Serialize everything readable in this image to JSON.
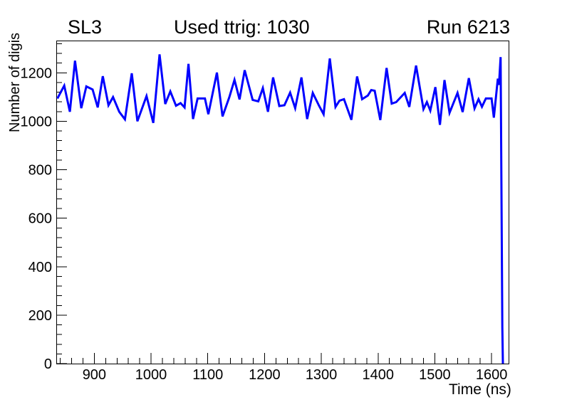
{
  "header": {
    "left_label": "SL3",
    "center_title": "Used ttrig: 1030",
    "right_label": "Run 6213"
  },
  "chart_data": {
    "type": "line",
    "title": "Used ttrig: 1030",
    "subtitle_left": "SL3",
    "subtitle_right": "Run 6213",
    "xlabel": "Time (ns)",
    "ylabel": "Number of digis",
    "xlim": [
      833,
      1630
    ],
    "ylim": [
      0,
      1333
    ],
    "x_major_ticks": [
      900,
      1000,
      1100,
      1200,
      1300,
      1400,
      1500,
      1600
    ],
    "x_minor_step": 20,
    "y_major_ticks": [
      0,
      200,
      400,
      600,
      800,
      1000,
      1200
    ],
    "y_minor_step": 40,
    "grid": false,
    "legend_position": "none",
    "line_color": "#0000ff",
    "axis_color": "#000000",
    "background_color": "#ffffff",
    "series": [
      {
        "name": "number-of-digis-vs-time",
        "points": [
          [
            835,
            1094
          ],
          [
            847,
            1147
          ],
          [
            857,
            1039
          ],
          [
            866,
            1250
          ],
          [
            877,
            1054
          ],
          [
            886,
            1144
          ],
          [
            897,
            1131
          ],
          [
            906,
            1057
          ],
          [
            915,
            1186
          ],
          [
            925,
            1066
          ],
          [
            933,
            1100
          ],
          [
            944,
            1039
          ],
          [
            954,
            1008
          ],
          [
            966,
            1198
          ],
          [
            976,
            1000
          ],
          [
            992,
            1104
          ],
          [
            1004,
            993
          ],
          [
            1015,
            1276
          ],
          [
            1025,
            1071
          ],
          [
            1034,
            1123
          ],
          [
            1044,
            1064
          ],
          [
            1052,
            1075
          ],
          [
            1059,
            1057
          ],
          [
            1066,
            1237
          ],
          [
            1074,
            1009
          ],
          [
            1082,
            1094
          ],
          [
            1095,
            1094
          ],
          [
            1101,
            1029
          ],
          [
            1116,
            1201
          ],
          [
            1126,
            1020
          ],
          [
            1138,
            1100
          ],
          [
            1147,
            1171
          ],
          [
            1156,
            1090
          ],
          [
            1165,
            1211
          ],
          [
            1179,
            1088
          ],
          [
            1189,
            1082
          ],
          [
            1197,
            1137
          ],
          [
            1206,
            1039
          ],
          [
            1215,
            1181
          ],
          [
            1226,
            1063
          ],
          [
            1235,
            1066
          ],
          [
            1245,
            1118
          ],
          [
            1254,
            1054
          ],
          [
            1265,
            1181
          ],
          [
            1275,
            1009
          ],
          [
            1285,
            1117
          ],
          [
            1296,
            1064
          ],
          [
            1304,
            1029
          ],
          [
            1315,
            1259
          ],
          [
            1325,
            1059
          ],
          [
            1332,
            1085
          ],
          [
            1340,
            1091
          ],
          [
            1353,
            1006
          ],
          [
            1363,
            1185
          ],
          [
            1372,
            1091
          ],
          [
            1382,
            1106
          ],
          [
            1388,
            1129
          ],
          [
            1394,
            1126
          ],
          [
            1404,
            1005
          ],
          [
            1415,
            1220
          ],
          [
            1424,
            1073
          ],
          [
            1432,
            1079
          ],
          [
            1447,
            1117
          ],
          [
            1455,
            1059
          ],
          [
            1467,
            1230
          ],
          [
            1480,
            1050
          ],
          [
            1486,
            1079
          ],
          [
            1492,
            1044
          ],
          [
            1501,
            1141
          ],
          [
            1509,
            985
          ],
          [
            1517,
            1170
          ],
          [
            1526,
            1035
          ],
          [
            1540,
            1117
          ],
          [
            1549,
            1038
          ],
          [
            1560,
            1178
          ],
          [
            1570,
            1053
          ],
          [
            1577,
            1091
          ],
          [
            1583,
            1060
          ],
          [
            1590,
            1094
          ],
          [
            1600,
            1094
          ],
          [
            1604,
            1015
          ],
          [
            1611,
            1176
          ],
          [
            1613,
            1150
          ],
          [
            1616,
            1265
          ],
          [
            1619,
            150
          ],
          [
            1620,
            0
          ]
        ]
      }
    ]
  }
}
